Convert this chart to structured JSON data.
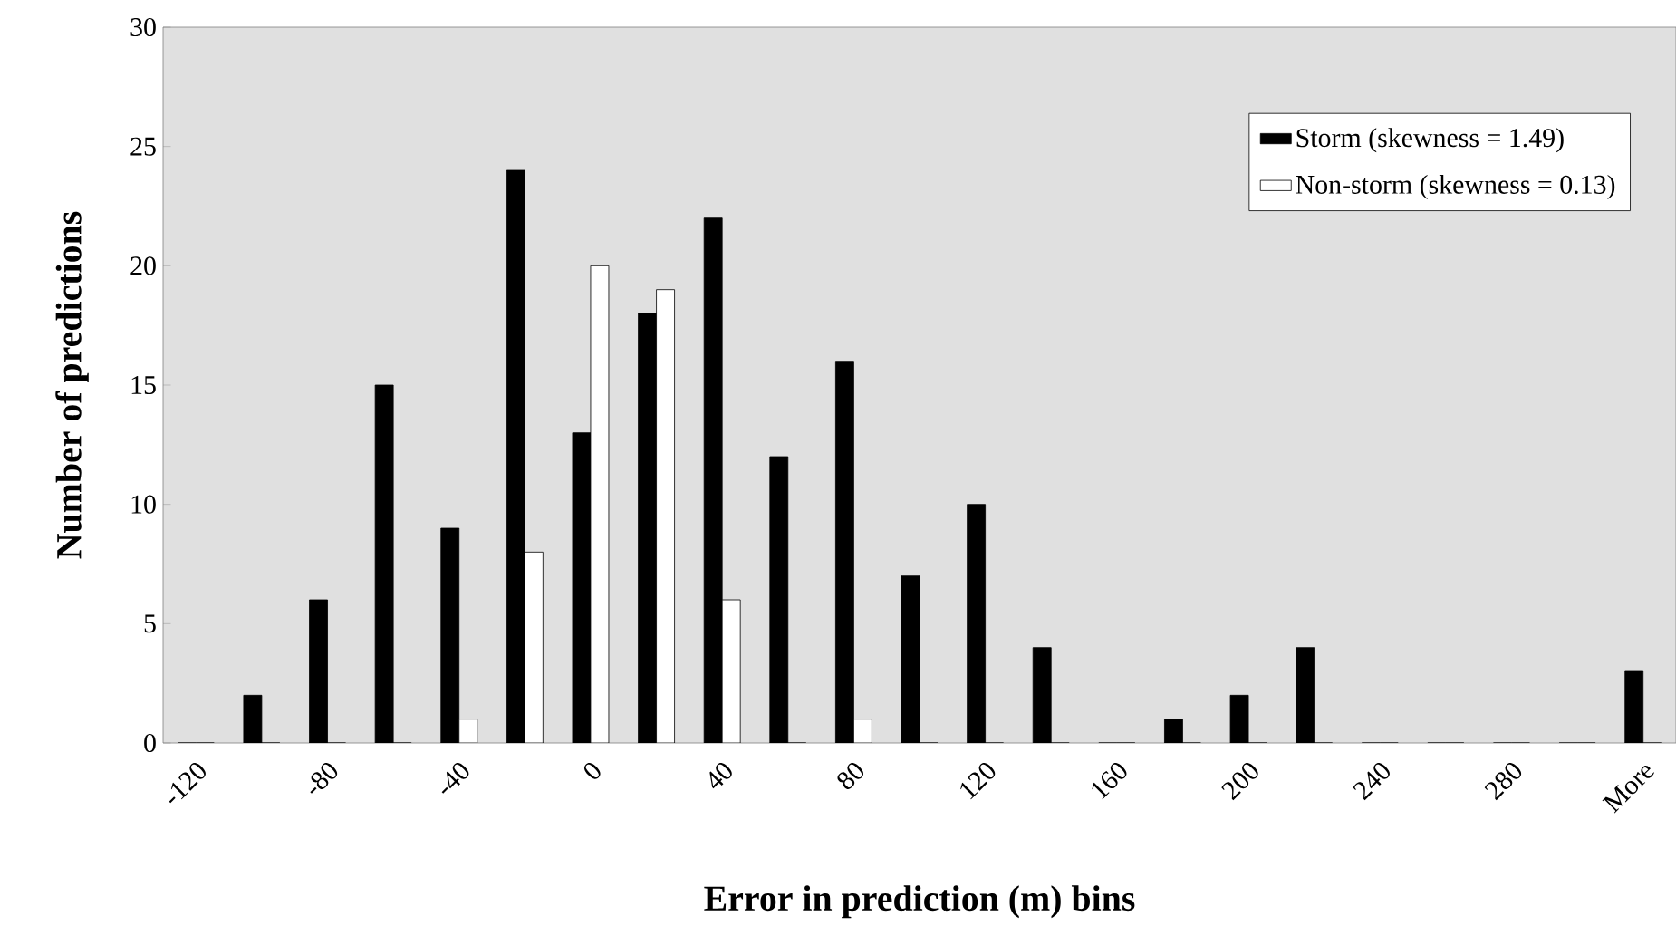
{
  "chart_data": {
    "type": "bar",
    "xlabel": "Error in prediction (m) bins",
    "ylabel": "Number of predictions",
    "categories": [
      "-120",
      null,
      "-80",
      null,
      "-40",
      null,
      "0",
      null,
      "40",
      null,
      "80",
      null,
      "120",
      null,
      "160",
      null,
      "200",
      null,
      "240",
      null,
      "280",
      null,
      "More"
    ],
    "series": [
      {
        "name": "Storm (skewness = 1.49)",
        "color": "#000000",
        "values": [
          0,
          2,
          6,
          15,
          9,
          24,
          13,
          18,
          22,
          12,
          16,
          7,
          10,
          4,
          0,
          1,
          2,
          4,
          0,
          0,
          0,
          0,
          3
        ]
      },
      {
        "name": "Non-storm (skewness = 0.13)",
        "color": "#ffffff",
        "values": [
          0,
          0,
          0,
          0,
          1,
          8,
          20,
          19,
          6,
          0,
          1,
          0,
          0,
          0,
          0,
          0,
          0,
          0,
          0,
          0,
          0,
          0,
          0
        ]
      }
    ],
    "ylim": [
      0,
      30
    ],
    "yticks": [
      0,
      5,
      10,
      15,
      20,
      25,
      30
    ],
    "grid": false,
    "legend": "top right"
  }
}
